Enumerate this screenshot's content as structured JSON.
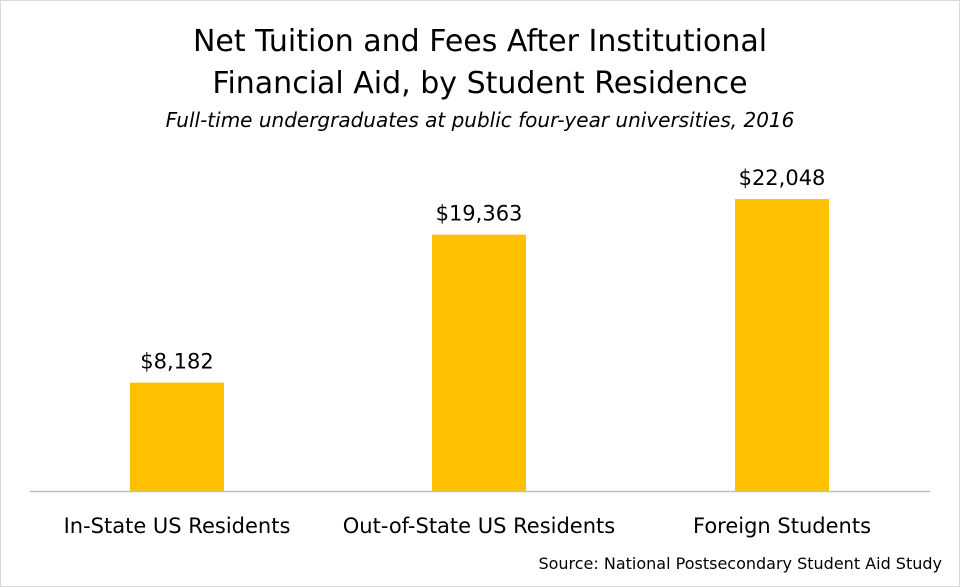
{
  "chart_data": {
    "type": "bar",
    "title": "Net Tuition and Fees After Institutional Financial Aid, by Student Residence",
    "title_lines": [
      "Net Tuition and Fees After Institutional",
      "Financial Aid, by Student Residence"
    ],
    "subtitle": "Full-time undergraduates at public four-year universities, 2016",
    "categories": [
      "In-State US Residents",
      "Out-of-State US Residents",
      "Foreign Students"
    ],
    "values": [
      8182,
      19363,
      22048
    ],
    "value_labels": [
      "$8,182",
      "$19,363",
      "$22,048"
    ],
    "bar_color": "#FFC000",
    "ylim": [
      0,
      25000
    ],
    "grid": false,
    "source": "Source: National Postsecondary Student Aid Study"
  }
}
